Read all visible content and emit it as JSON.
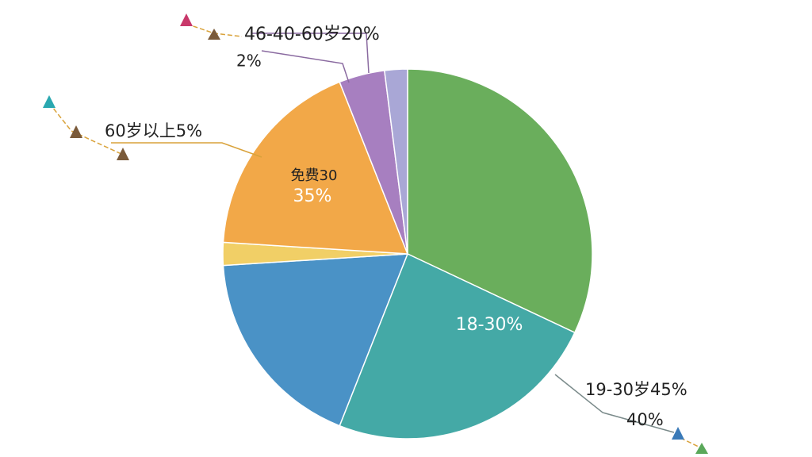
{
  "chart_data": {
    "type": "pie",
    "categories": [
      null,
      null,
      null,
      null,
      null,
      null,
      null
    ],
    "values": [
      32,
      24,
      18,
      2,
      18,
      4,
      2
    ],
    "colors": [
      "#6aae5c",
      "#44a9a6",
      "#4a92c6",
      "#f1cf66",
      "#f2a848",
      "#a77fc0",
      "#a9a7d6"
    ],
    "annotations": [
      "46-40-60岁20%",
      "2%",
      "60岁以上5%",
      "免费30",
      "35%",
      "18-30%",
      "19-30岁45%",
      "40%"
    ]
  }
}
